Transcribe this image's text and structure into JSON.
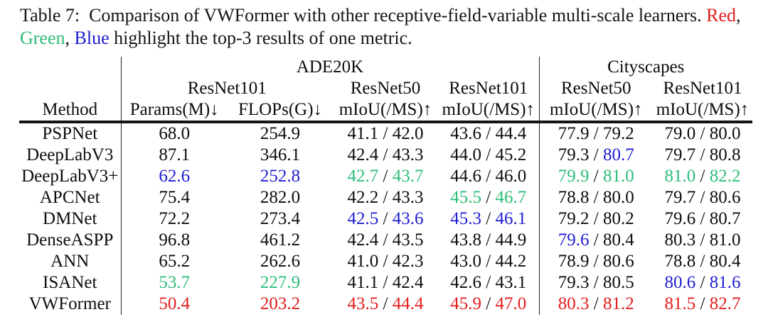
{
  "caption": {
    "line1": {
      "text": "Table 7: Comparison of VWFormer with other receptive-field-variable multi-scale learners. ",
      "red_word": "Red",
      "tail": ","
    },
    "line2": {
      "green_word": "Green",
      "sep1": ", ",
      "blue_word": "Blue",
      "tail": " highlight the top-3 results of one metric."
    }
  },
  "colors": {
    "black": "#0d0d0d",
    "red": "#e21d1d",
    "green": "#2ebd77",
    "blue": "#1e1ed2",
    "rule": "#222222"
  },
  "table": {
    "group_headers": [
      {
        "label": "ADE20K",
        "span": 4
      },
      {
        "label": "Cityscapes",
        "span": 2
      }
    ],
    "backbone_headers": [
      {
        "label": "ResNet101",
        "span": 2
      },
      {
        "label": "ResNet50",
        "span": 1
      },
      {
        "label": "ResNet101",
        "span": 1
      },
      {
        "label": "ResNet50",
        "span": 1
      },
      {
        "label": "ResNet101",
        "span": 1
      }
    ],
    "column_headers": [
      "Method",
      "Params(M)↓",
      "FLOPs(G)↓",
      "mIoU(/MS)↑",
      "mIoU(/MS)↑",
      "mIoU(/MS)↑",
      "mIoU(/MS)↑"
    ],
    "cell_names": [
      "params-value",
      "flops-value",
      "miou-ade-resnet50",
      "miou-ade-resnet101",
      "miou-city-resnet50",
      "miou-city-resnet101"
    ],
    "slash": " / ",
    "rows": [
      {
        "method": "PSPNet",
        "cells": [
          [
            "68.0",
            "black"
          ],
          [
            "254.9",
            "black"
          ],
          [
            "41.1",
            "black",
            "42.0",
            "black"
          ],
          [
            "43.6",
            "black",
            "44.4",
            "black"
          ],
          [
            "77.9",
            "black",
            "79.2",
            "black"
          ],
          [
            "79.0",
            "black",
            "80.0",
            "black"
          ]
        ]
      },
      {
        "method": "DeepLabV3",
        "cells": [
          [
            "87.1",
            "black"
          ],
          [
            "346.1",
            "black"
          ],
          [
            "42.4",
            "black",
            "43.3",
            "black"
          ],
          [
            "44.0",
            "black",
            "45.2",
            "black"
          ],
          [
            "79.3",
            "black",
            "80.7",
            "blue"
          ],
          [
            "79.7",
            "black",
            "80.8",
            "black"
          ]
        ]
      },
      {
        "method": "DeepLabV3+",
        "cells": [
          [
            "62.6",
            "blue"
          ],
          [
            "252.8",
            "blue"
          ],
          [
            "42.7",
            "green",
            "43.7",
            "green"
          ],
          [
            "44.6",
            "black",
            "46.0",
            "black"
          ],
          [
            "79.9",
            "green",
            "81.0",
            "green"
          ],
          [
            "81.0",
            "green",
            "82.2",
            "green"
          ]
        ]
      },
      {
        "method": "APCNet",
        "cells": [
          [
            "75.4",
            "black"
          ],
          [
            "282.0",
            "black"
          ],
          [
            "42.2",
            "black",
            "43.3",
            "black"
          ],
          [
            "45.5",
            "green",
            "46.7",
            "green"
          ],
          [
            "78.8",
            "black",
            "80.0",
            "black"
          ],
          [
            "79.7",
            "black",
            "80.6",
            "black"
          ]
        ]
      },
      {
        "method": "DMNet",
        "cells": [
          [
            "72.2",
            "black"
          ],
          [
            "273.4",
            "black"
          ],
          [
            "42.5",
            "blue",
            "43.6",
            "blue"
          ],
          [
            "45.3",
            "blue",
            "46.1",
            "blue"
          ],
          [
            "79.2",
            "black",
            "80.2",
            "black"
          ],
          [
            "79.6",
            "black",
            "80.7",
            "black"
          ]
        ]
      },
      {
        "method": "DenseASPP",
        "cells": [
          [
            "96.8",
            "black"
          ],
          [
            "461.2",
            "black"
          ],
          [
            "42.4",
            "black",
            "43.5",
            "black"
          ],
          [
            "43.8",
            "black",
            "44.9",
            "black"
          ],
          [
            "79.6",
            "blue",
            "80.4",
            "black"
          ],
          [
            "80.3",
            "black",
            "81.0",
            "black"
          ]
        ]
      },
      {
        "method": "ANN",
        "cells": [
          [
            "65.2",
            "black"
          ],
          [
            "262.6",
            "black"
          ],
          [
            "41.0",
            "black",
            "42.3",
            "black"
          ],
          [
            "43.0",
            "black",
            "44.2",
            "black"
          ],
          [
            "78.9",
            "black",
            "80.6",
            "black"
          ],
          [
            "78.8",
            "black",
            "80.4",
            "black"
          ]
        ]
      },
      {
        "method": "ISANet",
        "cells": [
          [
            "53.7",
            "green"
          ],
          [
            "227.9",
            "green"
          ],
          [
            "41.1",
            "black",
            "42.4",
            "black"
          ],
          [
            "42.6",
            "black",
            "43.1",
            "black"
          ],
          [
            "79.3",
            "black",
            "80.5",
            "black"
          ],
          [
            "80.6",
            "blue",
            "81.6",
            "blue"
          ]
        ]
      },
      {
        "method": "VWFormer",
        "cells": [
          [
            "50.4",
            "red"
          ],
          [
            "203.2",
            "red"
          ],
          [
            "43.5",
            "red",
            "44.4",
            "red"
          ],
          [
            "45.9",
            "red",
            "47.0",
            "red"
          ],
          [
            "80.3",
            "red",
            "81.2",
            "red"
          ],
          [
            "81.5",
            "red",
            "82.7",
            "red"
          ]
        ]
      }
    ]
  }
}
